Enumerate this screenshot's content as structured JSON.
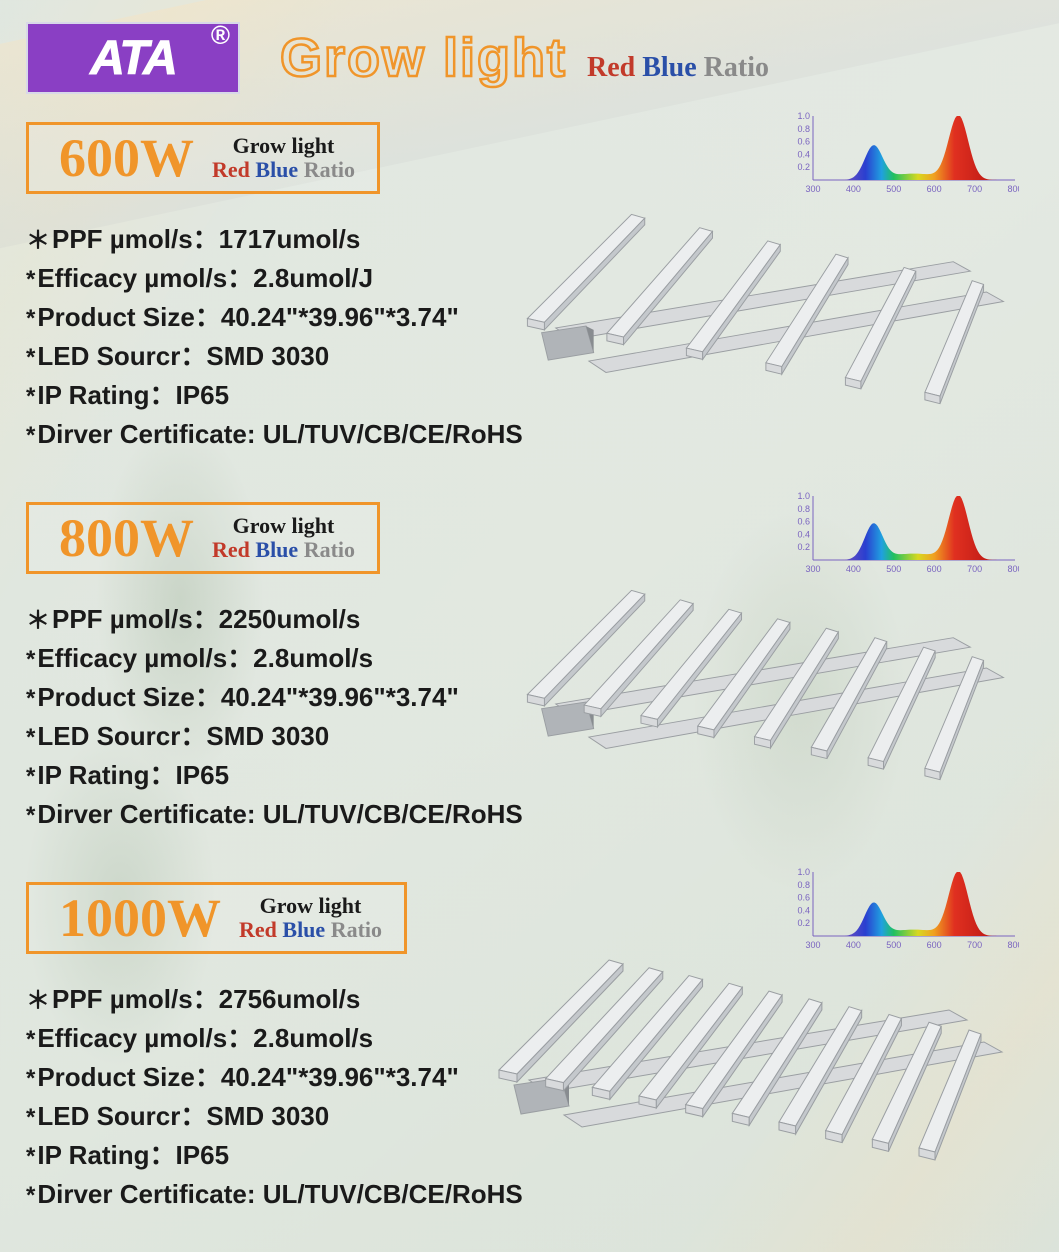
{
  "brand": {
    "logo_text": "ATA",
    "registered": "®",
    "logo_bg": "#8a3fc4",
    "logo_fg": "#ffffff"
  },
  "title": {
    "grow_light": "Grow light",
    "red": "Red",
    "blue": "Blue",
    "ratio": "Ratio"
  },
  "colors": {
    "orange": "#f0952a",
    "red": "#c23a2a",
    "blue": "#2a4fa8",
    "gray": "#8a8a8a",
    "text": "#1a1a1a"
  },
  "spec_labels": {
    "ppf": "PPF µmol/s：",
    "efficacy": "Efficacy µmol/s：",
    "size": "Product Size：",
    "led": "LED  Sourcr：",
    "ip": "IP Rating：",
    "cert": "Dirver Certificate: "
  },
  "products": [
    {
      "watt": "600W",
      "bars": 6,
      "ppf": "1717umol/s",
      "efficacy": "2.8umol/J",
      "size": "40.24\"*39.96\"*3.74\"",
      "led": "SMD 3030",
      "ip": "IP65",
      "cert": "UL/TUV/CB/CE/RoHS",
      "spectrum": {
        "xmin": 300,
        "xmax": 800,
        "xtick": 100,
        "ymax": 1.0,
        "yticks": [
          0.2,
          0.4,
          0.6,
          0.8,
          1.0
        ],
        "blue_peak_nm": 450,
        "blue_peak_h": 0.52,
        "red_peak_nm": 660,
        "red_peak_h": 1.0,
        "valley_h": 0.1,
        "axis_color": "#7a64c0",
        "tick_fontsize": 9
      }
    },
    {
      "watt": "800W",
      "bars": 8,
      "ppf": "2250umol/s",
      "efficacy": "2.8umol/s",
      "size": "40.24\"*39.96\"*3.74\"",
      "led": "SMD 3030",
      "ip": "IP65",
      "cert": "UL/TUV/CB/CE/RoHS",
      "spectrum": {
        "xmin": 300,
        "xmax": 800,
        "xtick": 100,
        "ymax": 1.0,
        "yticks": [
          0.2,
          0.4,
          0.6,
          0.8,
          1.0
        ],
        "blue_peak_nm": 450,
        "blue_peak_h": 0.55,
        "red_peak_nm": 660,
        "red_peak_h": 1.0,
        "valley_h": 0.1,
        "axis_color": "#7a64c0",
        "tick_fontsize": 9
      }
    },
    {
      "watt": "1000W",
      "bars": 10,
      "ppf": "2756umol/s",
      "efficacy": "2.8umol/s",
      "size": "40.24\"*39.96\"*3.74\"",
      "led": "SMD 3030",
      "ip": "IP65",
      "cert": "UL/TUV/CB/CE/RoHS",
      "spectrum": {
        "xmin": 300,
        "xmax": 800,
        "xtick": 100,
        "ymax": 1.0,
        "yticks": [
          0.2,
          0.4,
          0.6,
          0.8,
          1.0
        ],
        "blue_peak_nm": 450,
        "blue_peak_h": 0.5,
        "red_peak_nm": 660,
        "red_peak_h": 1.0,
        "valley_h": 0.1,
        "axis_color": "#7a64c0",
        "tick_fontsize": 9
      }
    }
  ],
  "sub_title": {
    "grow_light": "Grow light",
    "red": "Red",
    "blue": "Blue",
    "ratio": "Ratio"
  },
  "fixture_style": {
    "bar_fill": "#d8dadc",
    "bar_stroke": "#9a9ea2",
    "bar_top": "#eceeef",
    "driver_fill": "#b0b4b8"
  }
}
